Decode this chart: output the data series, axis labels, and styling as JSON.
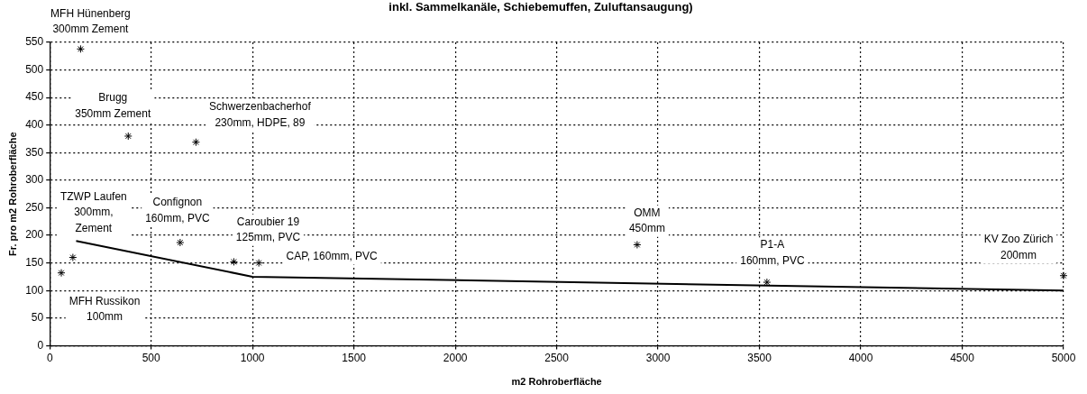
{
  "chart_data": {
    "type": "scatter",
    "title": "inkl. Sammelkanäle, Schiebemuffen, Zuluftansaugung)",
    "xlabel": "m2 Rohroberfläche",
    "ylabel": "Fr. pro m2 Rohroberfläche",
    "series": [
      {
        "type": "scatter",
        "color": "#000000",
        "marker": "cross",
        "x": [
          152,
          387,
          721,
          57,
          114,
          643,
          908,
          1031,
          2897,
          3537,
          5000
        ],
        "values": [
          538,
          380,
          369,
          132,
          160,
          187,
          152,
          150,
          183,
          115,
          127
        ]
      },
      {
        "type": "line",
        "color": "#000000",
        "marker": "none",
        "line_style": "solid",
        "x": [
          130,
          1000,
          5000
        ],
        "values": [
          190,
          125,
          100
        ]
      }
    ],
    "annotations": [
      {
        "text": "MFH Hünenberg\n300mm Zement",
        "x": 152,
        "y": 538
      },
      {
        "text": "Brugg\n350mm Zement",
        "x": 387,
        "y": 380
      },
      {
        "text": "Schwerzenbacherhof\n230mm, HDPE, 89",
        "x": 721,
        "y": 369
      },
      {
        "text": "MFH Russikon\n100mm",
        "x": 57,
        "y": 132
      },
      {
        "text": "TZWP Laufen\n300mm,\nZement",
        "x": 114,
        "y": 160
      },
      {
        "text": "Confignon\n160mm, PVC",
        "x": 643,
        "y": 187
      },
      {
        "text": "Caroubier 19\n125mm, PVC",
        "x": 908,
        "y": 152
      },
      {
        "text": "CAP, 160mm, PVC",
        "x": 1031,
        "y": 150
      },
      {
        "text": "OMM\n450mm",
        "x": 2897,
        "y": 183
      },
      {
        "text": "P1-A\n160mm, PVC",
        "x": 3537,
        "y": 115
      },
      {
        "text": "KV Zoo Zürich\n200mm",
        "x": 5000,
        "y": 127
      }
    ],
    "xlim": [
      0,
      5000
    ],
    "xticks": [
      0,
      500,
      1000,
      1500,
      2000,
      2500,
      3000,
      3500,
      4000,
      4500,
      5000
    ],
    "ylim": [
      0,
      550
    ],
    "yticks": [
      0,
      50,
      100,
      150,
      200,
      250,
      300,
      350,
      400,
      450,
      500,
      550
    ],
    "grid": true,
    "legend": false
  }
}
